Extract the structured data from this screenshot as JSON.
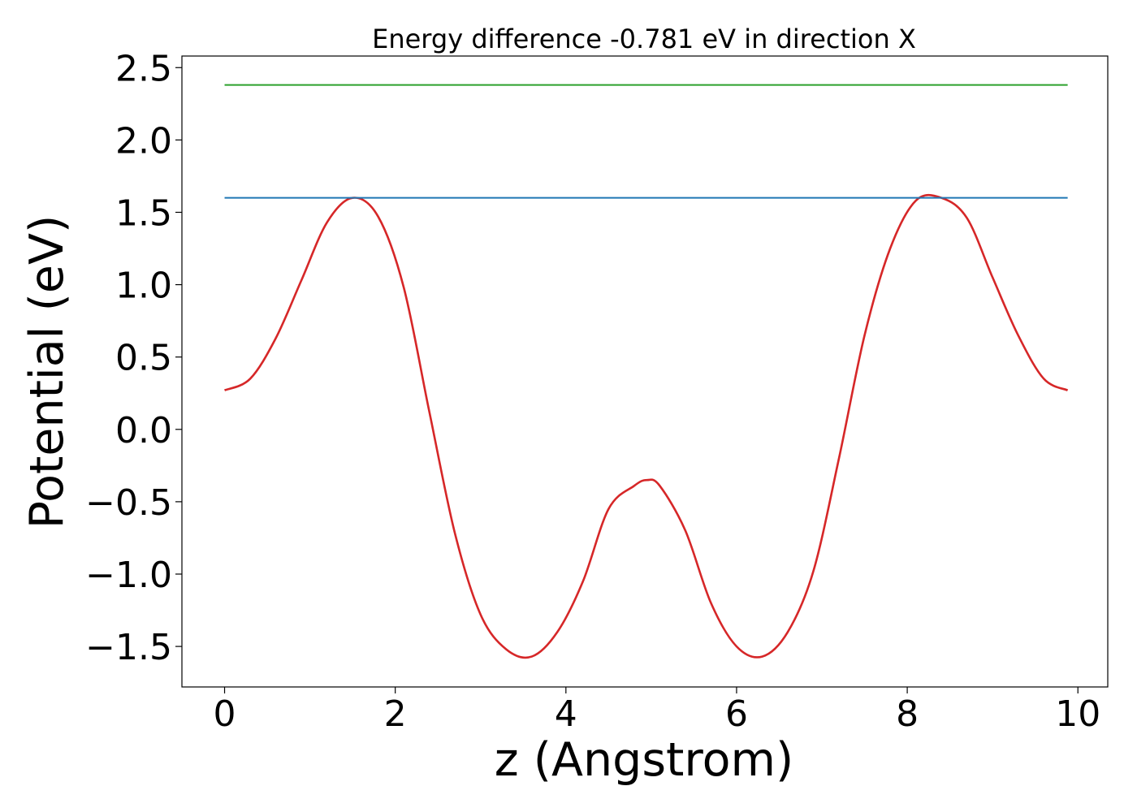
{
  "chart_data": {
    "type": "line",
    "title": "Energy difference -0.781 eV in direction X",
    "xlabel": "z (Angstrom)",
    "ylabel": "Potential (eV)",
    "xlim": [
      -0.5,
      10.35
    ],
    "ylim": [
      -1.78,
      2.58
    ],
    "xticks": [
      0,
      2,
      4,
      6,
      8,
      10
    ],
    "xtick_labels": [
      "0",
      "2",
      "4",
      "6",
      "8",
      "10"
    ],
    "yticks": [
      -1.5,
      -1.0,
      -0.5,
      0.0,
      0.5,
      1.0,
      1.5,
      2.0,
      2.5
    ],
    "ytick_labels": [
      "−1.5",
      "−1.0",
      "−0.5",
      "0.0",
      "0.5",
      "1.0",
      "1.5",
      "2.0",
      "2.5"
    ],
    "grid": false,
    "series": [
      {
        "color": "#d62728",
        "x": [
          0.0,
          0.3,
          0.6,
          0.9,
          1.2,
          1.5,
          1.8,
          2.1,
          2.4,
          2.7,
          3.0,
          3.3,
          3.6,
          3.9,
          4.2,
          4.5,
          4.8,
          4.95,
          5.1,
          5.4,
          5.7,
          6.0,
          6.3,
          6.6,
          6.9,
          7.2,
          7.5,
          7.8,
          8.1,
          8.4,
          8.7,
          9.0,
          9.3,
          9.6,
          9.88
        ],
        "y": [
          0.27,
          0.35,
          0.63,
          1.03,
          1.43,
          1.6,
          1.47,
          0.98,
          0.12,
          -0.72,
          -1.28,
          -1.52,
          -1.57,
          -1.4,
          -1.05,
          -0.55,
          -0.39,
          -0.35,
          -0.39,
          -0.7,
          -1.2,
          -1.5,
          -1.57,
          -1.4,
          -0.98,
          -0.2,
          0.65,
          1.25,
          1.58,
          1.6,
          1.46,
          1.05,
          0.65,
          0.35,
          0.27
        ]
      },
      {
        "color": "#1f77b4",
        "x": [
          0.0,
          9.88
        ],
        "y": [
          1.6,
          1.6
        ]
      },
      {
        "color": "#2ca02c",
        "x": [
          0.0,
          9.88
        ],
        "y": [
          2.38,
          2.38
        ]
      }
    ]
  }
}
